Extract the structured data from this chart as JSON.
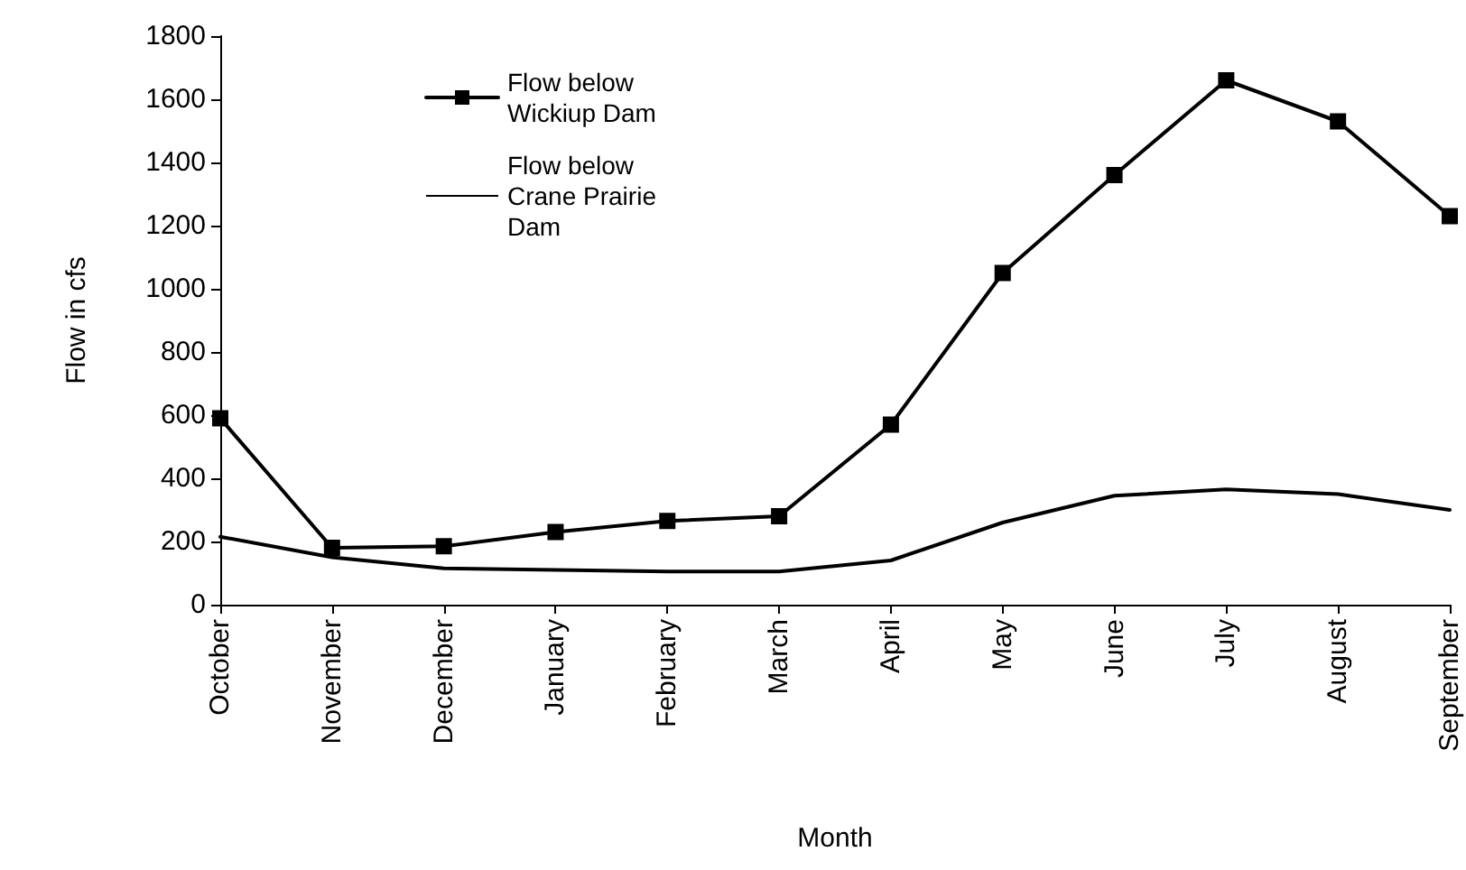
{
  "chart_data": {
    "type": "line",
    "xlabel": "Month",
    "ylabel": "Flow in cfs",
    "categories": [
      "October",
      "November",
      "December",
      "January",
      "February",
      "March",
      "April",
      "May",
      "June",
      "July",
      "August",
      "September"
    ],
    "series": [
      {
        "name": "Flow below Wickiup Dam",
        "color": "#000000",
        "marker": "square",
        "values": [
          590,
          180,
          185,
          230,
          265,
          280,
          570,
          1050,
          1360,
          1660,
          1530,
          1230
        ]
      },
      {
        "name": "Flow below Crane Prairie Dam",
        "color": "#000000",
        "marker": "none",
        "values": [
          215,
          150,
          115,
          110,
          105,
          105,
          140,
          260,
          345,
          365,
          350,
          300
        ]
      }
    ],
    "ylim": [
      0,
      1800
    ],
    "yticks": [
      0,
      200,
      400,
      600,
      800,
      1000,
      1200,
      1400,
      1600,
      1800
    ],
    "grid": false,
    "legend": "top left",
    "line_style": "solid"
  }
}
